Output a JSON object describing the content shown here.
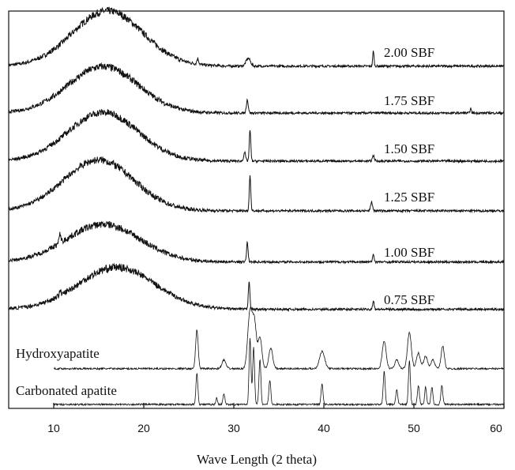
{
  "chart_data": {
    "type": "line",
    "title": "",
    "xlabel": "Wave Length (2 theta)",
    "ylabel": "",
    "xlim": [
      5,
      60
    ],
    "x_ticks": [
      10,
      20,
      30,
      40,
      50,
      60
    ],
    "grid": false,
    "legend": "none",
    "line_color": "#111111",
    "series": [
      {
        "name": "2.00 SBF",
        "baseline": 1.7,
        "amorphous_hump": {
          "center": 16,
          "width": 5.5,
          "height": 1.25
        },
        "peaks": [
          {
            "x": 26.0,
            "h": 0.25,
            "w": 0.15
          },
          {
            "x": 31.6,
            "h": 0.35,
            "w": 0.35
          },
          {
            "x": 45.5,
            "h": 0.7,
            "w": 0.1
          }
        ]
      },
      {
        "name": "1.75 SBF",
        "baseline": 1.3,
        "amorphous_hump": {
          "center": 15.5,
          "width": 5.5,
          "height": 1.05
        },
        "peaks": [
          {
            "x": 31.5,
            "h": 0.6,
            "w": 0.15
          },
          {
            "x": 56.3,
            "h": 0.2,
            "w": 0.1
          }
        ]
      },
      {
        "name": "1.50 SBF",
        "baseline": 1.2,
        "amorphous_hump": {
          "center": 15.5,
          "width": 5.5,
          "height": 1.1
        },
        "peaks": [
          {
            "x": 31.2,
            "h": 0.4,
            "w": 0.15
          },
          {
            "x": 31.8,
            "h": 1.4,
            "w": 0.12
          },
          {
            "x": 45.5,
            "h": 0.25,
            "w": 0.15
          }
        ]
      },
      {
        "name": "1.25 SBF",
        "baseline": 1.2,
        "amorphous_hump": {
          "center": 15,
          "width": 5.5,
          "height": 1.15
        },
        "peaks": [
          {
            "x": 31.8,
            "h": 1.6,
            "w": 0.12
          },
          {
            "x": 45.3,
            "h": 0.4,
            "w": 0.15
          }
        ]
      },
      {
        "name": "1.00 SBF",
        "baseline": 1.0,
        "amorphous_hump": {
          "center": 15.5,
          "width": 5.8,
          "height": 0.85
        },
        "peaks": [
          {
            "x": 10.7,
            "h": 0.4,
            "w": 0.15
          },
          {
            "x": 31.5,
            "h": 0.9,
            "w": 0.12
          },
          {
            "x": 45.5,
            "h": 0.35,
            "w": 0.12
          }
        ]
      },
      {
        "name": "0.75 SBF",
        "baseline": 1.0,
        "amorphous_hump": {
          "center": 17,
          "width": 6,
          "height": 0.95
        },
        "peaks": [
          {
            "x": 10.7,
            "h": 0.25,
            "w": 0.12
          },
          {
            "x": 31.7,
            "h": 1.3,
            "w": 0.12
          },
          {
            "x": 45.5,
            "h": 0.4,
            "w": 0.12
          }
        ]
      },
      {
        "name": "Hydroxyapatite",
        "baseline": 0.8,
        "amorphous_hump": null,
        "x_start": 10,
        "peaks": [
          {
            "x": 25.9,
            "h": 2.2,
            "w": 0.2
          },
          {
            "x": 28.9,
            "h": 0.5,
            "w": 0.3
          },
          {
            "x": 31.8,
            "h": 3.3,
            "w": 0.35
          },
          {
            "x": 32.3,
            "h": 2.5,
            "w": 0.3
          },
          {
            "x": 32.9,
            "h": 1.8,
            "w": 0.3
          },
          {
            "x": 34.1,
            "h": 1.2,
            "w": 0.3
          },
          {
            "x": 39.8,
            "h": 1.0,
            "w": 0.4
          },
          {
            "x": 46.7,
            "h": 1.6,
            "w": 0.3
          },
          {
            "x": 48.1,
            "h": 0.5,
            "w": 0.3
          },
          {
            "x": 49.5,
            "h": 2.1,
            "w": 0.3
          },
          {
            "x": 50.5,
            "h": 0.9,
            "w": 0.3
          },
          {
            "x": 51.3,
            "h": 0.7,
            "w": 0.3
          },
          {
            "x": 52.1,
            "h": 0.5,
            "w": 0.3
          },
          {
            "x": 53.2,
            "h": 1.3,
            "w": 0.25
          }
        ]
      },
      {
        "name": "Carbonated apatite",
        "baseline": 0.3,
        "amorphous_hump": null,
        "x_start": 10,
        "peaks": [
          {
            "x": 25.9,
            "h": 1.8,
            "w": 0.15
          },
          {
            "x": 28.1,
            "h": 0.4,
            "w": 0.12
          },
          {
            "x": 28.9,
            "h": 0.6,
            "w": 0.15
          },
          {
            "x": 31.8,
            "h": 3.8,
            "w": 0.15
          },
          {
            "x": 32.2,
            "h": 3.3,
            "w": 0.15
          },
          {
            "x": 32.9,
            "h": 2.6,
            "w": 0.15
          },
          {
            "x": 34.0,
            "h": 1.4,
            "w": 0.15
          },
          {
            "x": 39.8,
            "h": 1.2,
            "w": 0.15
          },
          {
            "x": 46.7,
            "h": 1.9,
            "w": 0.15
          },
          {
            "x": 48.1,
            "h": 0.9,
            "w": 0.15
          },
          {
            "x": 49.5,
            "h": 2.5,
            "w": 0.15
          },
          {
            "x": 50.5,
            "h": 1.1,
            "w": 0.15
          },
          {
            "x": 51.3,
            "h": 1.0,
            "w": 0.15
          },
          {
            "x": 52.0,
            "h": 1.0,
            "w": 0.15
          },
          {
            "x": 53.1,
            "h": 1.1,
            "w": 0.15
          }
        ]
      }
    ]
  }
}
